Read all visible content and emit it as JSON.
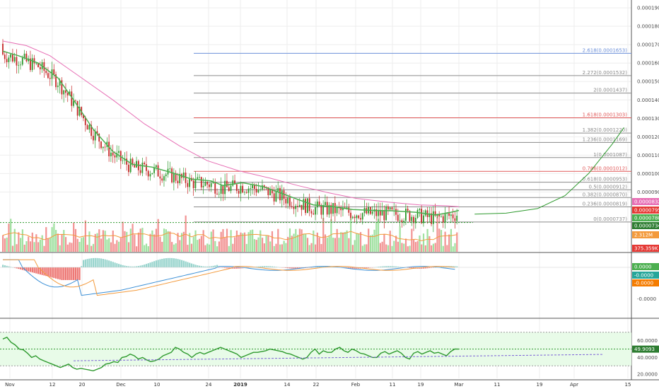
{
  "colors": {
    "up": "#8fdc8f",
    "down": "#f08080",
    "candle_up": "#2e9a2e",
    "candle_down": "#c62828",
    "ema_fast": "#4caf50",
    "ema_slow": "#e76fb5",
    "grid": "#eeeeee",
    "rsi_band": "#e8fbe8",
    "macd_line": "#3a8fd6",
    "signal_line": "#f39a3c"
  },
  "chart_data": [
    {
      "type": "candlestick",
      "panel": "price",
      "y_ticks": [
        "0.0001900",
        "0.0001800",
        "0.0001700",
        "0.0001600",
        "0.0001500",
        "0.0001400",
        "0.0001300",
        "0.0001200",
        "0.0001100",
        "0.0001000",
        "0.0000900"
      ],
      "y_tick_values": [
        0.00019,
        0.00018,
        0.00017,
        0.00016,
        0.00015,
        0.00014,
        0.00013,
        0.00012,
        0.00011,
        0.0001,
        9e-05
      ],
      "ylim": [
        7.25e-05,
        0.0001935
      ],
      "x_ticks": [
        "Nov",
        "12",
        "20",
        "Dec",
        "10",
        "24",
        "2019",
        "14",
        "22",
        "Feb",
        "11",
        "19",
        "Mar",
        "11",
        "19",
        "Apr",
        "15"
      ],
      "fib_levels": [
        {
          "label": "2.618(0.0001653)",
          "value": 0.0001653,
          "color": "#6c8fd8"
        },
        {
          "label": "2.272(0.0001532)",
          "value": 0.0001532,
          "color": "#8a8a8a"
        },
        {
          "label": "2(0.0001437)",
          "value": 0.0001437,
          "color": "#8a8a8a"
        },
        {
          "label": "1.618(0.0001303)",
          "value": 0.0001303,
          "color": "#e05a5a"
        },
        {
          "label": "1.382(0.0001220)",
          "value": 0.000122,
          "color": "#8a8a8a"
        },
        {
          "label": "1.236(0.0001169)",
          "value": 0.0001169,
          "color": "#8a8a8a"
        },
        {
          "label": "1(0.0001087)",
          "value": 0.0001087,
          "color": "#8a8a8a"
        },
        {
          "label": "0.786(0.0001012)",
          "value": 0.0001012,
          "color": "#e05a5a"
        },
        {
          "label": "0.618(0.0000953)",
          "value": 9.53e-05,
          "color": "#8a8a8a"
        },
        {
          "label": "0.5(0.0000912)",
          "value": 9.12e-05,
          "color": "#8a8a8a"
        },
        {
          "label": "0.382(0.0000870)",
          "value": 8.7e-05,
          "color": "#8a8a8a"
        },
        {
          "label": "0.236(0.0000819)",
          "value": 8.19e-05,
          "color": "#8a8a8a"
        },
        {
          "label": "0(0.0000737)",
          "value": 7.37e-05,
          "color": "#8a8a8a"
        }
      ],
      "price_tags": [
        {
          "label": "0.0000832",
          "value": 8.32e-05,
          "color": "#e76fb5"
        },
        {
          "label": "0.0000795",
          "value": 7.95e-05,
          "color": "#e53935"
        },
        {
          "label": "0.0000780",
          "value": 7.8e-05,
          "color": "#4caf50"
        },
        {
          "label": "0.0000734",
          "value": 7.34e-05,
          "color": "#2e7d32"
        }
      ],
      "volume_tags": [
        {
          "label": "2.312M",
          "color": "#f39a3c"
        },
        {
          "label": "375.359K",
          "color": "#e53935"
        }
      ],
      "ema_fast": [
        [
          0,
          0.0001665
        ],
        [
          8,
          0.000164
        ],
        [
          18,
          0.00016
        ],
        [
          28,
          0.000152
        ],
        [
          36,
          0.00014
        ],
        [
          46,
          0.000124
        ],
        [
          56,
          0.000112
        ],
        [
          66,
          0.000105
        ],
        [
          76,
          0.0001035
        ],
        [
          86,
          0.0001005
        ],
        [
          96,
          9.7e-05
        ],
        [
          106,
          9.6e-05
        ],
        [
          112,
          9.35e-05
        ],
        [
          122,
          9.5e-05
        ],
        [
          132,
          9.3e-05
        ],
        [
          140,
          9e-05
        ],
        [
          150,
          8.6e-05
        ],
        [
          158,
          8.3e-05
        ],
        [
          168,
          8.2e-05
        ],
        [
          178,
          8.05e-05
        ],
        [
          188,
          8e-05
        ],
        [
          198,
          7.98e-05
        ],
        [
          210,
          7.9e-05
        ],
        [
          220,
          7.75e-05
        ],
        [
          228,
          7.9e-05
        ],
        [
          232,
          8e-05
        ]
      ],
      "ema_slow": [
        [
          0,
          0.000172
        ],
        [
          12,
          0.0001695
        ],
        [
          24,
          0.000164
        ],
        [
          40,
          0.000152
        ],
        [
          56,
          0.00014
        ],
        [
          72,
          0.000127
        ],
        [
          90,
          0.000115
        ],
        [
          104,
          0.000107
        ],
        [
          120,
          0.0001015
        ],
        [
          136,
          9.75e-05
        ],
        [
          150,
          9.35e-05
        ],
        [
          166,
          8.95e-05
        ],
        [
          180,
          8.65e-05
        ],
        [
          196,
          8.45e-05
        ],
        [
          212,
          8.3e-05
        ],
        [
          226,
          8.25e-05
        ],
        [
          232,
          8.2e-05
        ]
      ],
      "projection_curve": [
        [
          240,
          7.8e-05
        ],
        [
          256,
          7.85e-05
        ],
        [
          272,
          8.1e-05
        ],
        [
          286,
          8.8e-05
        ],
        [
          298,
          0.0001
        ],
        [
          310,
          0.000116
        ],
        [
          316,
          0.000125
        ]
      ]
    },
    {
      "type": "bar",
      "panel": "volume",
      "ylim": [
        0,
        12
      ]
    },
    {
      "type": "histogram",
      "panel": "macd",
      "y_ticks": [
        "-0.0000"
      ],
      "value_tags": [
        {
          "label": "0.0000",
          "color": "#4caf50"
        },
        {
          "label": "-0.0000",
          "color": "#26a69a"
        },
        {
          "label": "-0.0000",
          "color": "#f57c00"
        }
      ]
    },
    {
      "type": "line",
      "panel": "rsi",
      "y_ticks": [
        "60.0000",
        "40.0000",
        "20.0000"
      ],
      "y_tick_values": [
        60,
        40,
        20
      ],
      "ylim": [
        15,
        85
      ],
      "value_tags": [
        {
          "label": "49.9093",
          "color": "#2e7d32"
        }
      ],
      "levels": [
        70,
        50,
        30
      ],
      "values": [
        62,
        64,
        58,
        55,
        50,
        49,
        45,
        40,
        42,
        38,
        36,
        34,
        32,
        30,
        28,
        30,
        32,
        28,
        26,
        27,
        26,
        25,
        24,
        26,
        28,
        32,
        33,
        35,
        34,
        40,
        41,
        44,
        42,
        38,
        40,
        37,
        35,
        36,
        38,
        42,
        44,
        46,
        52,
        50,
        46,
        44,
        40,
        44,
        46,
        44,
        46,
        48,
        50,
        52,
        50,
        48,
        46,
        44,
        40,
        42,
        44,
        46,
        46,
        47,
        48,
        50,
        49,
        48,
        47,
        45,
        44,
        42,
        40,
        38,
        40,
        46,
        50,
        44,
        48,
        46,
        46,
        50,
        52,
        48,
        46,
        50,
        48,
        45,
        44,
        42,
        40,
        40,
        45,
        47,
        44,
        46,
        48,
        45,
        40,
        38,
        45,
        47,
        44,
        46,
        48,
        45,
        46,
        44,
        42,
        47,
        50,
        49.9
      ],
      "trendline": [
        [
          36,
          0.3
        ],
        [
          305,
          0.24
        ]
      ]
    }
  ]
}
